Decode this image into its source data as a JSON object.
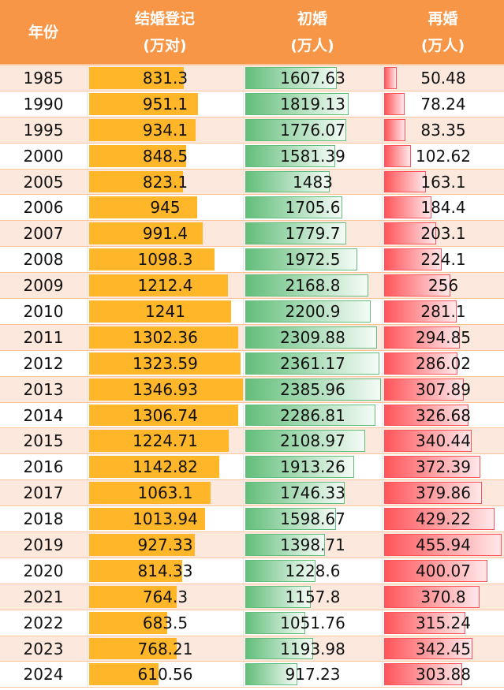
{
  "header": {
    "year": "年份",
    "col1_line1": "结婚登记",
    "col1_line2": "(万对)",
    "col2_line1": "初婚",
    "col2_line2": "(万人)",
    "col3_line1": "再婚",
    "col3_line2": "(万人)"
  },
  "colors": {
    "header": "#f79646",
    "marriage_bar": "#ffb628",
    "first_bar": "#63be7b",
    "remarriage_bar": "#ff555a",
    "alt_row": "#fce8dc"
  },
  "rows": [
    {
      "year": "1985",
      "marriage": "831.3",
      "first": "1607.63",
      "re": "50.48"
    },
    {
      "year": "1990",
      "marriage": "951.1",
      "first": "1819.13",
      "re": "78.24"
    },
    {
      "year": "1995",
      "marriage": "934.1",
      "first": "1776.07",
      "re": "83.35"
    },
    {
      "year": "2000",
      "marriage": "848.5",
      "first": "1581.39",
      "re": "102.62"
    },
    {
      "year": "2005",
      "marriage": "823.1",
      "first": "1483",
      "re": "163.1"
    },
    {
      "year": "2006",
      "marriage": "945",
      "first": "1705.6",
      "re": "184.4"
    },
    {
      "year": "2007",
      "marriage": "991.4",
      "first": "1779.7",
      "re": "203.1"
    },
    {
      "year": "2008",
      "marriage": "1098.3",
      "first": "1972.5",
      "re": "224.1"
    },
    {
      "year": "2009",
      "marriage": "1212.4",
      "first": "2168.8",
      "re": "256"
    },
    {
      "year": "2010",
      "marriage": "1241",
      "first": "2200.9",
      "re": "281.1"
    },
    {
      "year": "2011",
      "marriage": "1302.36",
      "first": "2309.88",
      "re": "294.85"
    },
    {
      "year": "2012",
      "marriage": "1323.59",
      "first": "2361.17",
      "re": "286.02"
    },
    {
      "year": "2013",
      "marriage": "1346.93",
      "first": "2385.96",
      "re": "307.89"
    },
    {
      "year": "2014",
      "marriage": "1306.74",
      "first": "2286.81",
      "re": "326.68"
    },
    {
      "year": "2015",
      "marriage": "1224.71",
      "first": "2108.97",
      "re": "340.44"
    },
    {
      "year": "2016",
      "marriage": "1142.82",
      "first": "1913.26",
      "re": "372.39"
    },
    {
      "year": "2017",
      "marriage": "1063.1",
      "first": "1746.33",
      "re": "379.86"
    },
    {
      "year": "2018",
      "marriage": "1013.94",
      "first": "1598.67",
      "re": "429.22"
    },
    {
      "year": "2019",
      "marriage": "927.33",
      "first": "1398.71",
      "re": "455.94"
    },
    {
      "year": "2020",
      "marriage": "814.33",
      "first": "1228.6",
      "re": "400.07"
    },
    {
      "year": "2021",
      "marriage": "764.3",
      "first": "1157.8",
      "re": "370.8"
    },
    {
      "year": "2022",
      "marriage": "683.5",
      "first": "1051.76",
      "re": "315.24"
    },
    {
      "year": "2023",
      "marriage": "768.21",
      "first": "1193.98",
      "re": "342.45"
    },
    {
      "year": "2024",
      "marriage": "610.56",
      "first": "917.23",
      "re": "303.88"
    }
  ]
}
